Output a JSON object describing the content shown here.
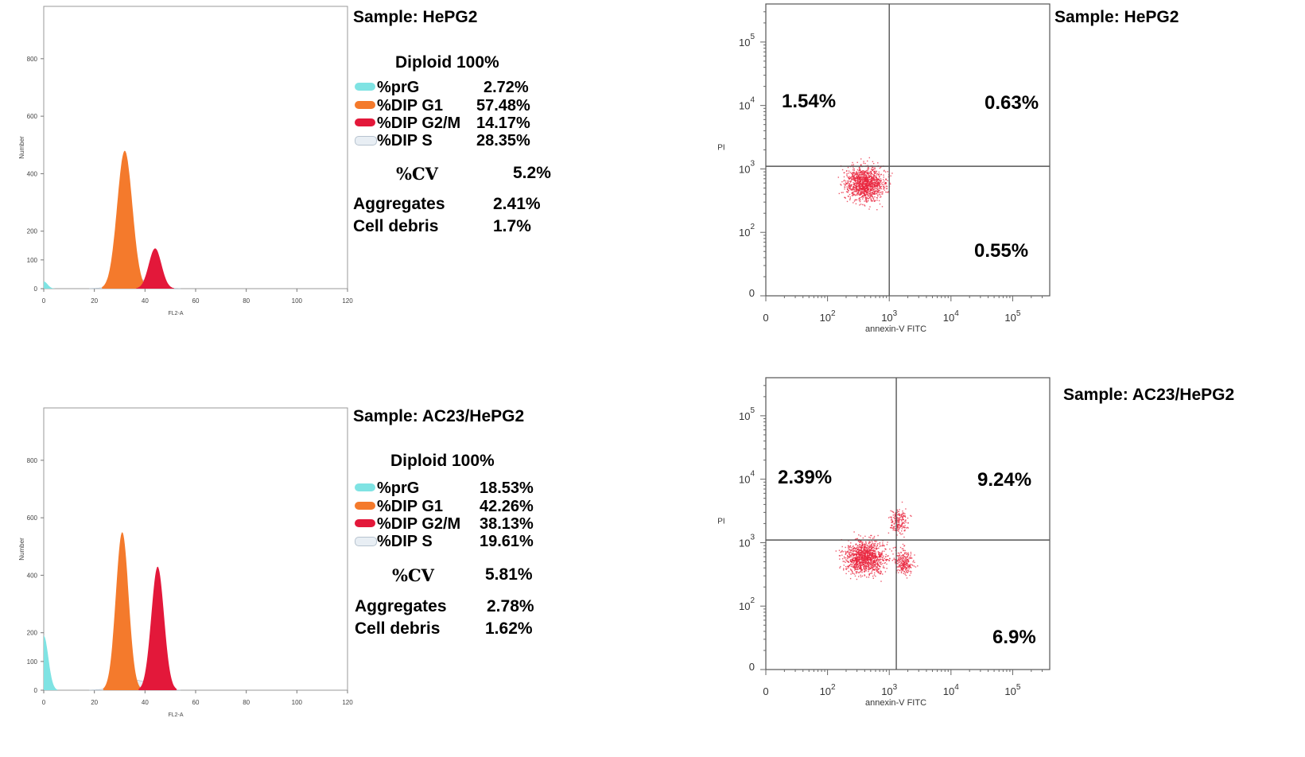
{
  "panels": [
    {
      "sample_label": "Sample: HePG2",
      "diploid": "Diploid 100%",
      "legend": [
        {
          "name": "%prG",
          "value": "2.72%",
          "color": "#7fe3e3"
        },
        {
          "name": "%DIP G1",
          "value": "57.48%",
          "color": "#f47a2c"
        },
        {
          "name": "%DIP G2/M",
          "value": "14.17%",
          "color": "#e3183a"
        },
        {
          "name": "%DIP S",
          "value": "28.35%",
          "color": "#dfe6ee"
        }
      ],
      "cv_label": "%CV",
      "cv_value": "5.2%",
      "aggregates_label": "Aggregates",
      "aggregates_value": "2.41%",
      "debris_label": "Cell debris",
      "debris_value": "1.7%",
      "scatter_sample_label": "Sample: HePG2",
      "quadrants": {
        "ul": "1.54%",
        "ur": "0.63%",
        "lr": "0.55%"
      }
    },
    {
      "sample_label": "Sample:  AC23/HePG2",
      "diploid": "Diploid 100%",
      "legend": [
        {
          "name": "%prG",
          "value": "18.53%",
          "color": "#7fe3e3"
        },
        {
          "name": "%DIP G1",
          "value": "42.26%",
          "color": "#f47a2c"
        },
        {
          "name": "%DIP G2/M",
          "value": "38.13%",
          "color": "#e3183a"
        },
        {
          "name": "%DIP S",
          "value": "19.61%",
          "color": "#dfe6ee"
        }
      ],
      "cv_label": "%CV",
      "cv_value": "5.81%",
      "aggregates_label": "Aggregates",
      "aggregates_value": "2.78%",
      "debris_label": "Cell debris",
      "debris_value": "1.62%",
      "scatter_sample_label": "Sample:  AC23/HePG2",
      "quadrants": {
        "ul": "2.39%",
        "ur": "9.24%",
        "lr": "6.9%"
      }
    }
  ],
  "chart_data": [
    {
      "type": "area",
      "title": "",
      "xlabel": "FL2-A",
      "ylabel": "Number",
      "xlim": [
        0,
        120
      ],
      "ylim": [
        0,
        960
      ],
      "xticks": [
        "0",
        "20",
        "40",
        "60",
        "80",
        "100",
        "120"
      ],
      "yticks": [
        "0",
        "100",
        "200",
        "400",
        "600",
        "800"
      ],
      "series": [
        {
          "name": "%prG",
          "peaks": [
            {
              "center": 0,
              "height": 25,
              "width": 1.5
            }
          ]
        },
        {
          "name": "%DIP G1",
          "peaks": [
            {
              "center": 32,
              "height": 480,
              "width": 3
            }
          ]
        },
        {
          "name": "%DIP G2/M",
          "peaks": [
            {
              "center": 44,
              "height": 140,
              "width": 2.5
            }
          ]
        },
        {
          "name": "%DIP S",
          "peaks": [
            {
              "center": 36,
              "height": 35,
              "width": 6
            }
          ]
        }
      ]
    },
    {
      "type": "scatter",
      "title": "",
      "xlabel": "annexin-V FITC",
      "ylabel": "PI",
      "xticks": [
        "0",
        "10^2",
        "10^3",
        "10^4",
        "10^5"
      ],
      "yticks": [
        "0",
        "10^2",
        "10^3",
        "10^4",
        "10^5"
      ],
      "quadrant_divider": {
        "x": 1000,
        "y": 1100
      },
      "quadrant_percentages": {
        "upper_left": 1.54,
        "upper_right": 0.63,
        "lower_right": 0.55
      },
      "clusters": [
        {
          "center": [
            400,
            600
          ],
          "spread": 1,
          "count": 1200
        }
      ],
      "point_color": "#e8243c"
    },
    {
      "type": "area",
      "title": "",
      "xlabel": "FL2-A",
      "ylabel": "Number",
      "xlim": [
        0,
        120
      ],
      "ylim": [
        0,
        960
      ],
      "xticks": [
        "0",
        "20",
        "40",
        "60",
        "80",
        "100",
        "120"
      ],
      "yticks": [
        "0",
        "100",
        "200",
        "400",
        "600",
        "800"
      ],
      "series": [
        {
          "name": "%prG",
          "peaks": [
            {
              "center": 0,
              "height": 190,
              "width": 1.8
            }
          ]
        },
        {
          "name": "%DIP G1",
          "peaks": [
            {
              "center": 31,
              "height": 550,
              "width": 2.5
            }
          ]
        },
        {
          "name": "%DIP G2/M",
          "peaks": [
            {
              "center": 45,
              "height": 430,
              "width": 2.5
            }
          ]
        },
        {
          "name": "%DIP S",
          "peaks": [
            {
              "center": 36,
              "height": 35,
              "width": 6
            }
          ]
        }
      ]
    },
    {
      "type": "scatter",
      "title": "",
      "xlabel": "annexin-V FITC",
      "ylabel": "PI",
      "xticks": [
        "0",
        "10^2",
        "10^3",
        "10^4",
        "10^5"
      ],
      "yticks": [
        "0",
        "10^2",
        "10^3",
        "10^4",
        "10^5"
      ],
      "quadrant_divider": {
        "x": 1300,
        "y": 1100
      },
      "quadrant_percentages": {
        "upper_left": 2.39,
        "upper_right": 9.24,
        "lower_right": 6.9
      },
      "clusters": [
        {
          "center": [
            400,
            600
          ],
          "spread": 1,
          "count": 1200
        },
        {
          "center": [
            1400,
            2200
          ],
          "spread": 1,
          "count": 200
        },
        {
          "center": [
            1700,
            500
          ],
          "spread": 1,
          "count": 250
        }
      ],
      "point_color": "#e8243c"
    }
  ]
}
